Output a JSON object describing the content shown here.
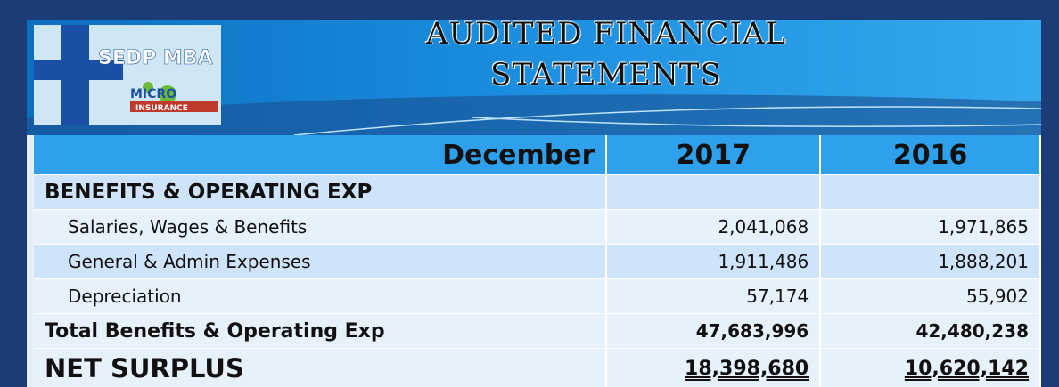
{
  "header": {
    "title_lines": [
      "AUDITED FINANCIAL",
      "STATEMENTS"
    ],
    "logo": {
      "name": "SEDP MBA",
      "sub": "MICRO",
      "tag": "INSURANCE"
    }
  },
  "table": {
    "columns": [
      "December",
      "2017",
      "2016"
    ],
    "rows": [
      {
        "label": "BENEFITS & OPERATING EXP",
        "style": "section"
      },
      {
        "label": "Salaries, Wages & Benefits",
        "values": [
          "2,041,068",
          "1,971,865"
        ],
        "style": "item"
      },
      {
        "label": "General & Admin Expenses",
        "values": [
          "1,911,486",
          "1,888,201"
        ],
        "style": "item"
      },
      {
        "label": "Depreciation",
        "values": [
          "57,174",
          "55,902"
        ],
        "style": "item"
      },
      {
        "label": "Total Benefits & Operating Exp",
        "values": [
          "47,683,996",
          "42,480,238"
        ],
        "style": "total"
      },
      {
        "label": "NET SURPLUS",
        "values": [
          "18,398,680",
          "10,620,142"
        ],
        "style": "net"
      }
    ]
  }
}
